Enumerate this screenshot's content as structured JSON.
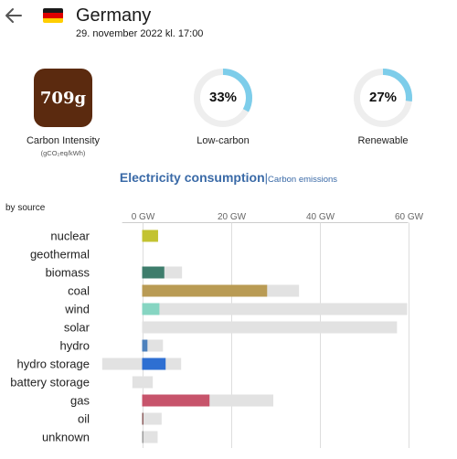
{
  "header": {
    "title": "Germany",
    "datetime": "29. november 2022 kl. 17:00",
    "flag_colors": [
      "#1a1a1a",
      "#dd0000",
      "#ffce00"
    ]
  },
  "metrics": {
    "carbon_intensity": {
      "value": "709g",
      "label": "Carbon Intensity",
      "unit": "(gCO₂eq/kWh)",
      "color": "#5b2a0f"
    },
    "low_carbon": {
      "value": "33%",
      "fraction": 0.33,
      "label": "Low-carbon"
    },
    "renewable": {
      "value": "27%",
      "fraction": 0.27,
      "label": "Renewable"
    },
    "gauge_colors": {
      "fill": "#7dcdea",
      "track": "#eeeeee"
    }
  },
  "tabs": {
    "active": "Electricity consumption",
    "separator": "|",
    "inactive": "Carbon emissions"
  },
  "chart_label": "by source",
  "chart_data": {
    "type": "bar",
    "orientation": "horizontal",
    "unit": "GW",
    "xlim": [
      -4.5,
      60
    ],
    "ticks": [
      {
        "value": 0,
        "label": "0 GW"
      },
      {
        "value": 20,
        "label": "20 GW"
      },
      {
        "value": 40,
        "label": "40 GW"
      },
      {
        "value": 60,
        "label": "60 GW"
      }
    ],
    "grid": true,
    "categories": [
      {
        "name": "nuclear",
        "value": 3.6,
        "capacity": null,
        "color": "#c3c331"
      },
      {
        "name": "geothermal",
        "value": 0,
        "capacity": null,
        "color": "#cccccc"
      },
      {
        "name": "biomass",
        "value": 5.0,
        "capacity": 9.0,
        "color": "#3e7d6c"
      },
      {
        "name": "coal",
        "value": 28.2,
        "capacity": 35.4,
        "color": "#b99b54"
      },
      {
        "name": "wind",
        "value": 3.9,
        "capacity": 59.8,
        "color": "#86d5c2"
      },
      {
        "name": "solar",
        "value": 0,
        "capacity": 57.5,
        "color": "#f2d05a"
      },
      {
        "name": "hydro",
        "value": 1.2,
        "capacity": 4.7,
        "color": "#4e82bd"
      },
      {
        "name": "hydro storage",
        "value": 5.3,
        "capacity": 8.8,
        "capacity_min": -9.0,
        "color": "#2e6fd2"
      },
      {
        "name": "battery storage",
        "value": 0,
        "capacity": 2.4,
        "capacity_min": -2.2,
        "color": "#6aa0d8"
      },
      {
        "name": "gas",
        "value": 15.2,
        "capacity": 29.6,
        "color": "#c7546b"
      },
      {
        "name": "oil",
        "value": 0.3,
        "capacity": 4.4,
        "color": "#8a5a5a"
      },
      {
        "name": "unknown",
        "value": 0.3,
        "capacity": 3.5,
        "color": "#999999"
      }
    ]
  }
}
